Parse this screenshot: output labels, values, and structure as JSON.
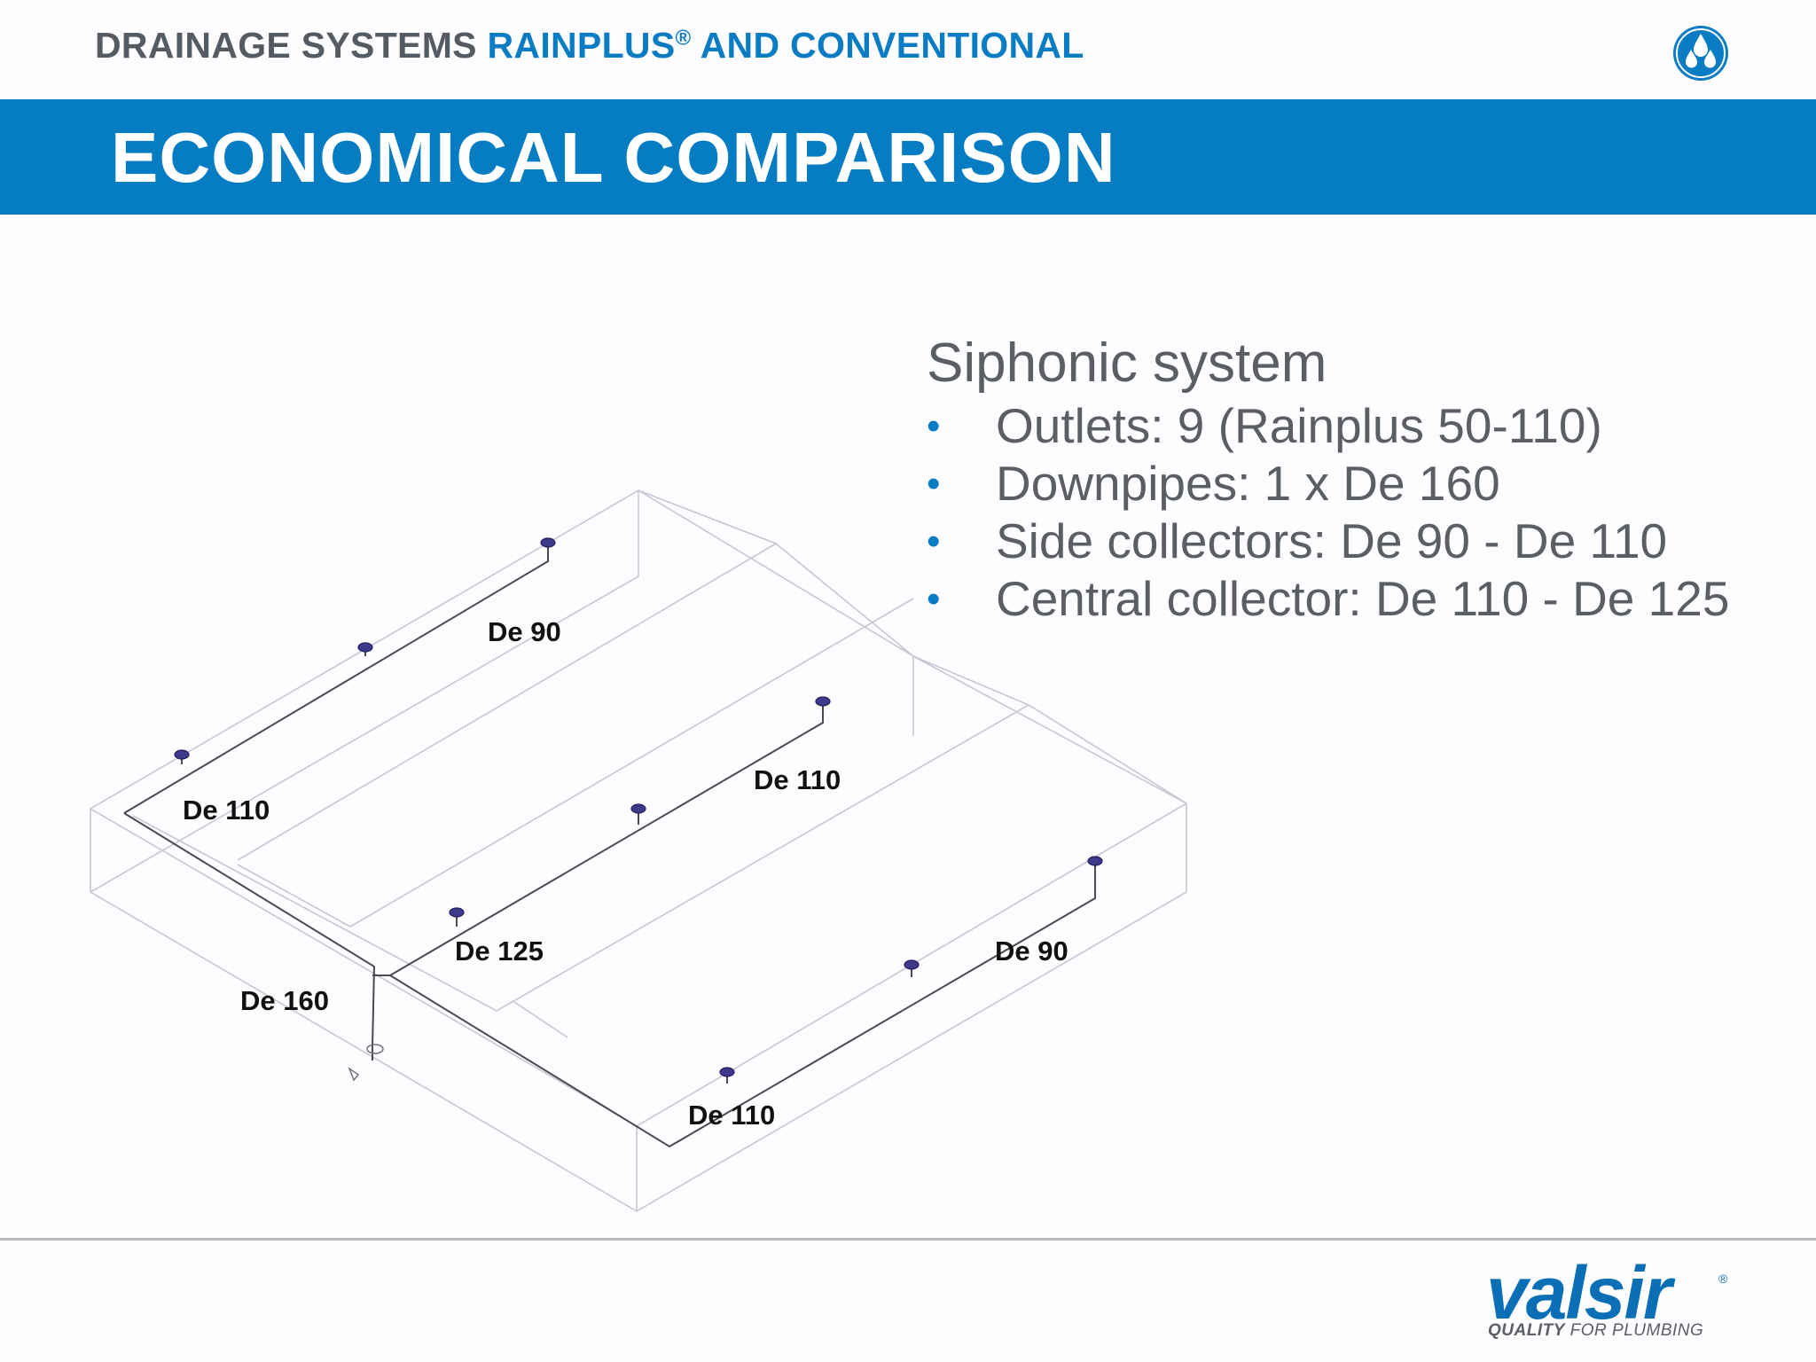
{
  "header": {
    "title_prefix": "DRAINAGE SYSTEMS",
    "title_highlight": "RAINPLUS",
    "title_reg": "®",
    "title_suffix": " AND CONVENTIONAL",
    "logo_icon": "water-drops-icon"
  },
  "banner": {
    "title": "ECONOMICAL COMPARISON"
  },
  "info": {
    "heading": "Siphonic system",
    "bullets": [
      "Outlets: 9 (Rainplus 50-110)",
      "Downpipes: 1 x De 160",
      "Side collectors: De 90 - De 110",
      "Central collector: De 110 - De 125"
    ]
  },
  "diagram": {
    "labels": {
      "left_collector_upper": "De 90",
      "left_collector_lower": "De 110",
      "central_collector_upper": "De 110",
      "central_collector_lower": "De 125",
      "downpipe": "De 160",
      "right_collector_upper": "De 90",
      "right_collector_lower": "De 110"
    }
  },
  "footer": {
    "brand_name": "valsir",
    "brand_reg": "®",
    "tagline_bold": "QUALITY",
    "tagline_rest": " FOR PLUMBING"
  },
  "colors": {
    "accent": "#067dc3",
    "heading_grey": "#555b62",
    "body_grey": "#5a5f66"
  }
}
